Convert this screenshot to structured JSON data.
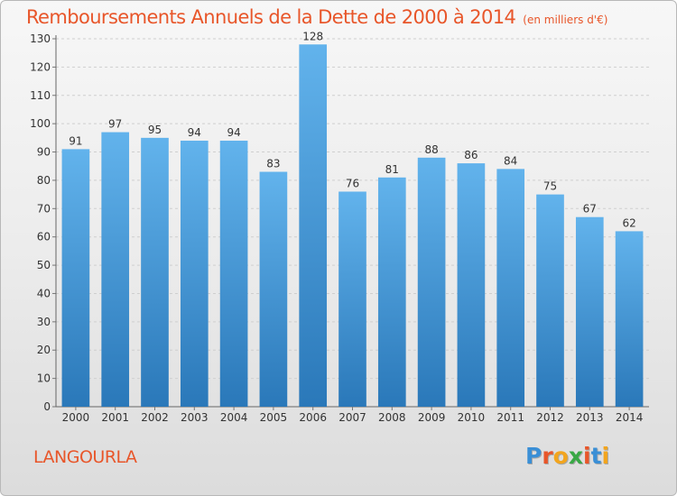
{
  "header": {
    "title": "Remboursements Annuels de la Dette de 2000 à 2014",
    "unit": "(en milliers d'€)"
  },
  "footer": {
    "town": "LANGOURLA",
    "logo": "Proxiti",
    "logo_letters": [
      "P",
      "r",
      "o",
      "x",
      "i",
      "t",
      "i"
    ],
    "logo_colors": [
      "#3a8fd6",
      "#e8562a",
      "#f2a51e",
      "#39a845",
      "#e8562a",
      "#3a8fd6",
      "#f2a51e"
    ]
  },
  "colors": {
    "title": "#e8562a",
    "bar_top": "#62b3ec",
    "bar_bottom": "#2a78b9",
    "grid": "#cfcfcf"
  },
  "chart_data": {
    "type": "bar",
    "title": "Remboursements Annuels de la Dette de 2000 à 2014",
    "subtitle": "(en milliers d'€)",
    "xlabel": "",
    "ylabel": "",
    "categories": [
      "2000",
      "2001",
      "2002",
      "2003",
      "2004",
      "2005",
      "2006",
      "2007",
      "2008",
      "2009",
      "2010",
      "2011",
      "2012",
      "2013",
      "2014"
    ],
    "values": [
      91,
      97,
      95,
      94,
      94,
      83,
      128,
      76,
      81,
      88,
      86,
      84,
      75,
      67,
      62
    ],
    "ylim": [
      0,
      130
    ],
    "yticks": [
      0,
      10,
      20,
      30,
      40,
      50,
      60,
      70,
      80,
      90,
      100,
      110,
      120,
      130
    ],
    "grid": true,
    "data_labels": true
  }
}
